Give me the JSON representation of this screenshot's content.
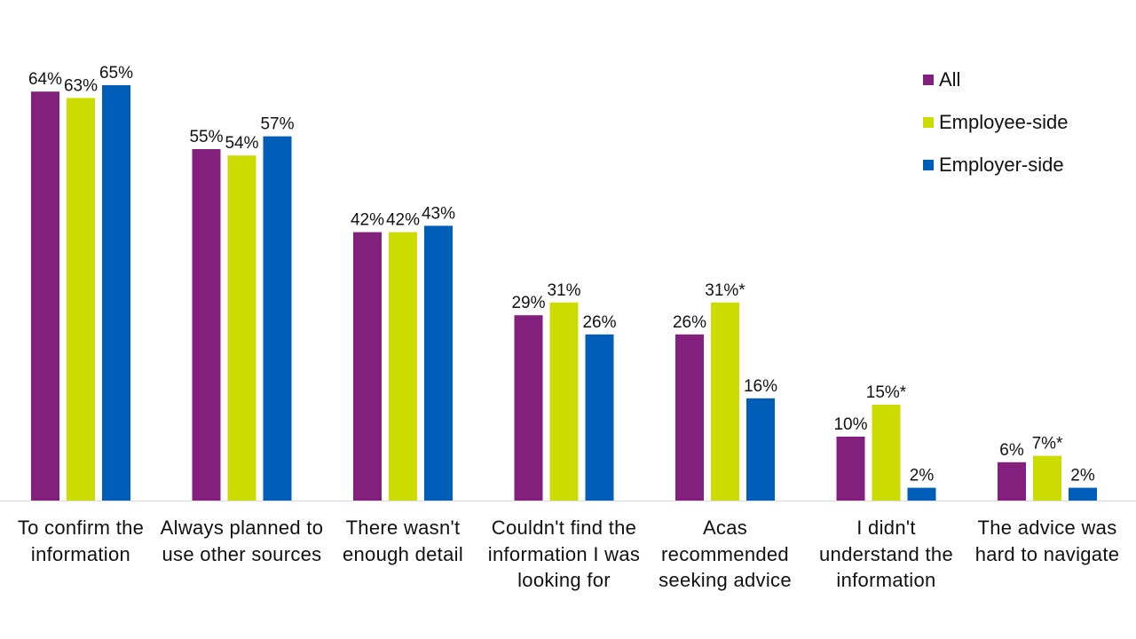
{
  "chart_data": {
    "type": "bar",
    "title": "",
    "xlabel": "",
    "ylabel": "",
    "ylim": [
      0,
      70
    ],
    "grid": false,
    "legend_placement": "top-right",
    "categories": [
      "To confirm the information",
      "Always planned to use other sources",
      "There wasn't enough detail",
      "Couldn't find the information I was looking for",
      "Acas recommended seeking advice",
      "I didn't understand the information",
      "The advice was hard to navigate"
    ],
    "series": [
      {
        "name": "All",
        "color": "#831F7C",
        "values": [
          64,
          55,
          42,
          29,
          26,
          10,
          6
        ],
        "labels": [
          "64%",
          "55%",
          "42%",
          "29%",
          "26%",
          "10%",
          "6%"
        ]
      },
      {
        "name": "Employee-side",
        "color": "#CCDC00",
        "values": [
          63,
          54,
          42,
          31,
          31,
          15,
          7
        ],
        "labels": [
          "63%",
          "54%",
          "42%",
          "31%",
          "31%*",
          "15%*",
          "7%*"
        ]
      },
      {
        "name": "Employer-side",
        "color": "#005EB8",
        "values": [
          65,
          57,
          43,
          26,
          16,
          2,
          2
        ],
        "labels": [
          "65%",
          "57%",
          "43%",
          "26%",
          "16%",
          "2%",
          "2%"
        ]
      }
    ]
  }
}
